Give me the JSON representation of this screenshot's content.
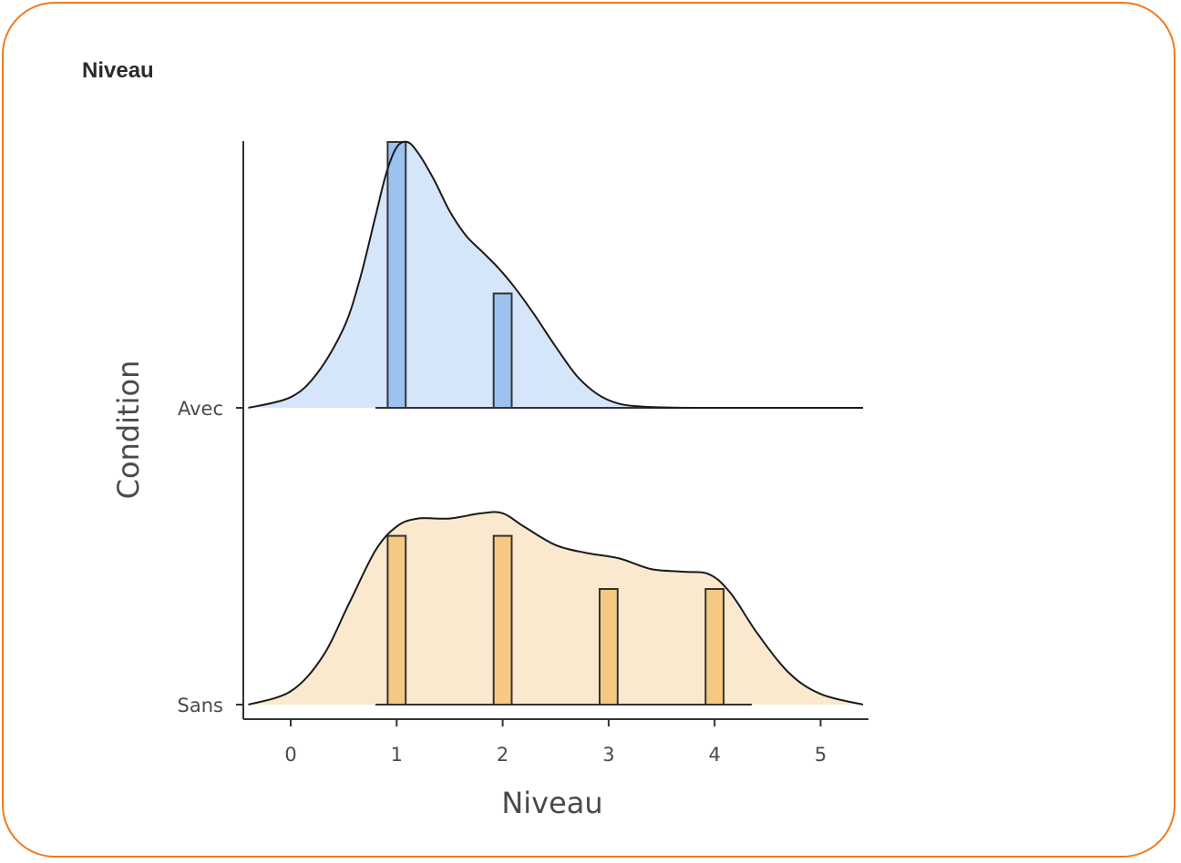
{
  "card": {
    "title": "Niveau"
  },
  "colors": {
    "card_border": "#ee7a22",
    "avec_density_fill": "#d6e6fa",
    "avec_bar_fill": "#9cc3f0",
    "sans_density_fill": "#fbe9cf",
    "sans_bar_fill": "#f5c982",
    "outline": "#1a1a1a",
    "axis": "#333333"
  },
  "chart_data": {
    "type": "ridgeline",
    "title": "",
    "xlabel": "Niveau",
    "ylabel": "Condition",
    "xlim": [
      -0.45,
      5.45
    ],
    "x_ticks": [
      0,
      1,
      2,
      3,
      4,
      5
    ],
    "x_tick_labels": [
      "0",
      "1",
      "2",
      "3",
      "4",
      "5"
    ],
    "grid": false,
    "series": [
      {
        "name": "Avec",
        "density": {
          "x": [
            -0.4,
            0.0,
            0.25,
            0.5,
            0.65,
            0.8,
            0.9,
            1.0,
            1.1,
            1.2,
            1.35,
            1.5,
            1.65,
            1.8,
            1.95,
            2.1,
            2.3,
            2.5,
            2.7,
            2.9,
            3.1,
            3.3,
            3.6,
            4.0,
            5.4
          ],
          "y": [
            0.0,
            0.04,
            0.13,
            0.3,
            0.48,
            0.72,
            0.88,
            0.98,
            1.0,
            0.96,
            0.86,
            0.74,
            0.65,
            0.59,
            0.53,
            0.46,
            0.35,
            0.23,
            0.12,
            0.05,
            0.015,
            0.005,
            0.001,
            0.0,
            0.0
          ]
        },
        "bars": {
          "x": [
            1,
            2
          ],
          "height": [
            1.0,
            0.43
          ]
        },
        "bar_width": 0.17,
        "baseline_range": [
          0.8,
          4.35
        ]
      },
      {
        "name": "Sans",
        "density": {
          "x": [
            -0.4,
            0.0,
            0.3,
            0.55,
            0.8,
            1.0,
            1.2,
            1.5,
            1.8,
            2.0,
            2.2,
            2.5,
            2.8,
            3.1,
            3.4,
            3.7,
            3.95,
            4.15,
            4.4,
            4.7,
            5.0,
            5.4
          ],
          "y": [
            0.0,
            0.05,
            0.18,
            0.38,
            0.58,
            0.67,
            0.7,
            0.7,
            0.72,
            0.72,
            0.67,
            0.6,
            0.57,
            0.55,
            0.51,
            0.5,
            0.49,
            0.42,
            0.27,
            0.12,
            0.04,
            0.0
          ]
        },
        "bars": {
          "x": [
            1,
            2,
            3,
            4
          ],
          "height": [
            0.635,
            0.635,
            0.435,
            0.435
          ]
        },
        "bar_width": 0.17,
        "baseline_range": [
          0.8,
          4.35
        ]
      }
    ]
  }
}
